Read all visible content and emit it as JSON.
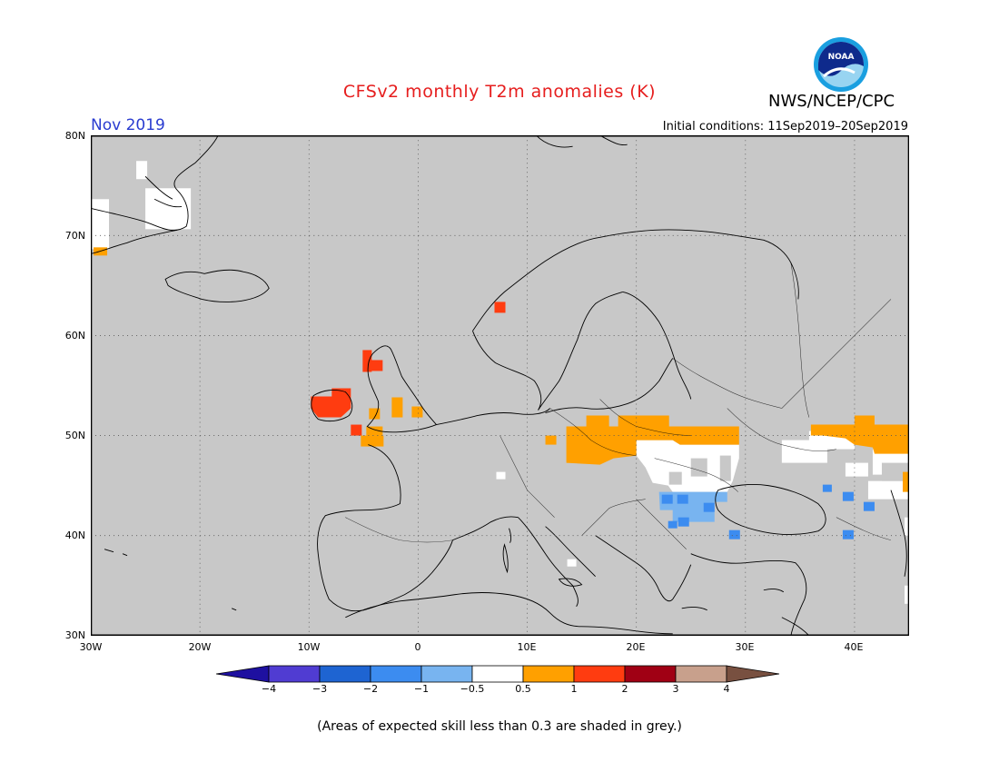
{
  "header": {
    "title": "CFSv2 monthly T2m anomalies (K)",
    "month": "Nov 2019",
    "organization": "NWS/NCEP/CPC",
    "initial_conditions": "Initial conditions: 11Sep2019–20Sep2019",
    "logo_text": "NOAA"
  },
  "map": {
    "lon_range": [
      -30,
      45
    ],
    "lat_range": [
      30,
      80
    ],
    "background_color": "#c8c8c8",
    "lat_labels": [
      "80N",
      "70N",
      "60N",
      "50N",
      "40N",
      "30N"
    ],
    "lon_labels": [
      "30W",
      "20W",
      "10W",
      "0",
      "10E",
      "20E",
      "30E",
      "40E"
    ],
    "anomaly_regions": [
      {
        "region": "Ireland",
        "category": "1 to 2 (orange-red)",
        "color": "#ff3c10"
      },
      {
        "region": "Northern Scotland",
        "category": "1 to 2",
        "color": "#ff3c10"
      },
      {
        "region": "Southwest Norway",
        "category": "1 to 2",
        "color": "#ff3c10"
      },
      {
        "region": "Southern Britain / English Channel",
        "category": "0.5 to 1",
        "color": "#ffa000"
      },
      {
        "region": "Central Europe (Czechia, Slovakia, southern Poland, western Ukraine)",
        "category": "0.5 to 1",
        "color": "#ffa000"
      },
      {
        "region": "Southern Russia / Kazakhstan border",
        "category": "0.5 to 1",
        "color": "#ffa000"
      },
      {
        "region": "Hungary, Romania, Black Sea coast",
        "category": "-0.5 to 0.5 (white)",
        "color": "#ffffff"
      },
      {
        "region": "Bulgaria / northern Greece",
        "category": "-1 to -0.5",
        "color": "#78b4f0"
      },
      {
        "region": "Caucasus / northern Turkey",
        "category": "-2 to -1",
        "color": "#3c8cf0"
      }
    ]
  },
  "colorbar": {
    "labels": [
      "−4",
      "−3",
      "−2",
      "−1",
      "−0.5",
      "0.5",
      "1",
      "2",
      "3",
      "4"
    ],
    "colors": [
      "#1e10a0",
      "#503cd2",
      "#1e64d2",
      "#3c8cf0",
      "#78b4f0",
      "#ffffff",
      "#ffa000",
      "#ff3c10",
      "#a00014",
      "#c8a08c",
      "#785040"
    ]
  },
  "footnote": "(Areas of expected skill less than 0.3 are shaded in grey.)"
}
